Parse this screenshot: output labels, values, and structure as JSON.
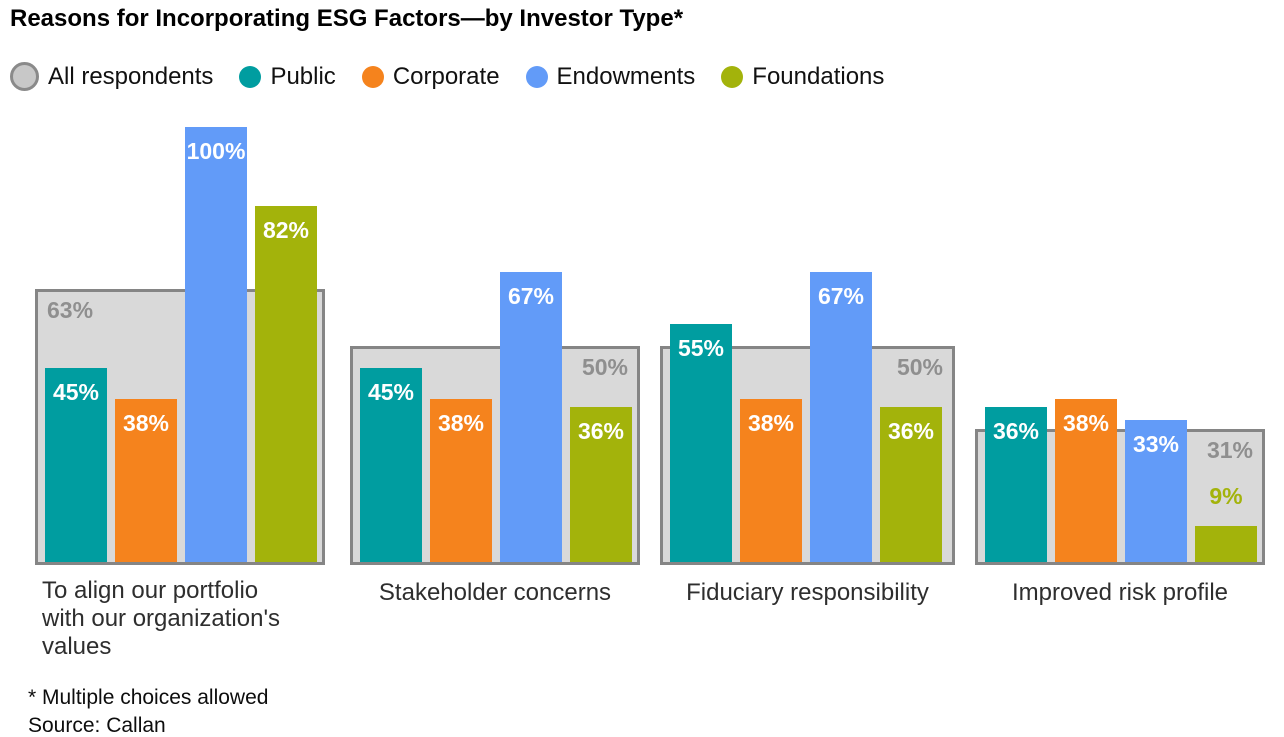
{
  "title": "Reasons for Incorporating ESG Factors—by Investor Type*",
  "legend": {
    "items": [
      {
        "label": "All respondents",
        "color": "#c8c8c8",
        "type": "band"
      },
      {
        "label": "Public",
        "color": "#009da0",
        "type": "bar"
      },
      {
        "label": "Corporate",
        "color": "#f5831d",
        "type": "bar"
      },
      {
        "label": "Endowments",
        "color": "#629bf8",
        "type": "bar"
      },
      {
        "label": "Foundations",
        "color": "#a3b30b",
        "type": "bar"
      }
    ]
  },
  "chart_data": {
    "type": "bar",
    "unit": "%",
    "ylim": [
      0,
      100
    ],
    "grid": false,
    "legend_position": "top-left",
    "categories": [
      "To align our portfolio with our organization's values",
      "Stakeholder concerns",
      "Fiduciary responsibility",
      "Improved risk profile"
    ],
    "series": [
      {
        "name": "All respondents",
        "role": "background-band",
        "values": [
          63,
          50,
          50,
          31
        ],
        "fill": "#d9d9d9",
        "border_color": "#858585",
        "label_color": "#8f8f8f",
        "label_align_by_category": [
          "left",
          "right",
          "right",
          "right"
        ]
      },
      {
        "name": "Public",
        "role": "bar",
        "values": [
          45,
          45,
          55,
          36
        ],
        "color": "#009da0"
      },
      {
        "name": "Corporate",
        "role": "bar",
        "values": [
          38,
          38,
          38,
          38
        ],
        "color": "#f5831d"
      },
      {
        "name": "Endowments",
        "role": "bar",
        "values": [
          100,
          67,
          67,
          33
        ],
        "color": "#629bf8"
      },
      {
        "name": "Foundations",
        "role": "bar",
        "values": [
          82,
          36,
          36,
          9
        ],
        "color": "#a3b30b"
      }
    ],
    "value_label_format": "{v}%",
    "small_bar_label_outside": true
  },
  "footnotes": {
    "line1": "* Multiple choices allowed",
    "line2": "Source: Callan"
  }
}
